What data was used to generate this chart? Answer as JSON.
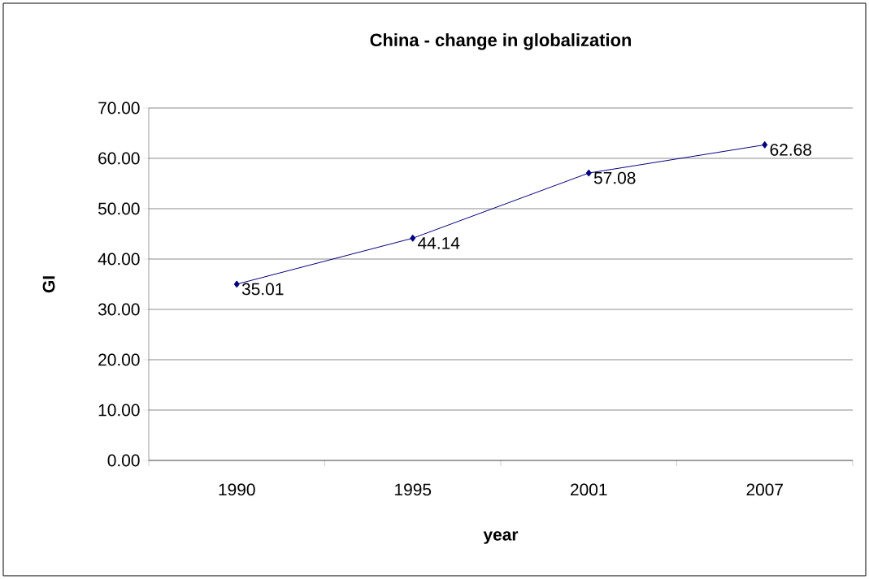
{
  "chart_data": {
    "type": "line",
    "title": "China - change in globalization",
    "xlabel": "year",
    "ylabel": "GI",
    "categories": [
      "1990",
      "1995",
      "2001",
      "2007"
    ],
    "values": [
      35.01,
      44.14,
      57.08,
      62.68
    ],
    "color": "#000080",
    "ylim": [
      0,
      70
    ],
    "yticks": [
      {
        "value": 0,
        "label": "0.00"
      },
      {
        "value": 10,
        "label": "10.00"
      },
      {
        "value": 20,
        "label": "20.00"
      },
      {
        "value": 30,
        "label": "30.00"
      },
      {
        "value": 40,
        "label": "40.00"
      },
      {
        "value": 50,
        "label": "50.00"
      },
      {
        "value": 60,
        "label": "60.00"
      },
      {
        "value": 70,
        "label": "70.00"
      }
    ],
    "grid": "y",
    "marker": "diamond",
    "line_style": "solid",
    "value_labels": [
      "35.01",
      "44.14",
      "57.08",
      "62.68"
    ]
  }
}
